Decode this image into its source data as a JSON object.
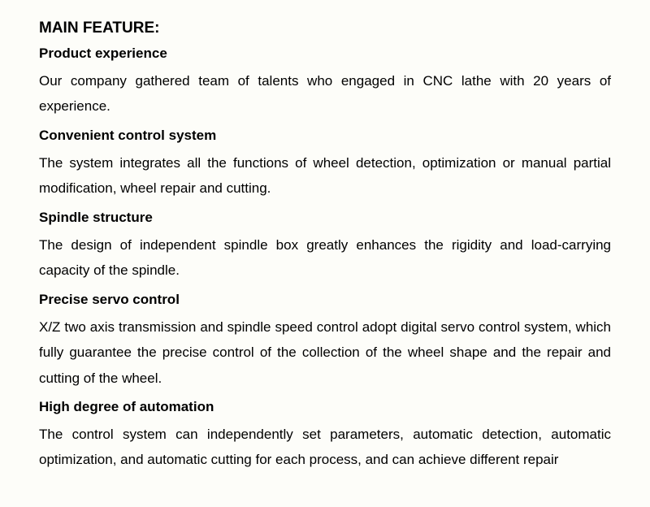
{
  "document": {
    "main_title": "MAIN FEATURE:",
    "title_fontsize": 19,
    "heading_fontsize": 17,
    "body_fontsize": 17,
    "text_color": "#000000",
    "background_color": "#fdfdf9",
    "line_height": 1.85,
    "text_align": "justify",
    "sections": [
      {
        "heading": "Product experience",
        "text": "Our company gathered team of talents who engaged in CNC lathe with 20 years of experience."
      },
      {
        "heading": "Convenient control system",
        "text": "The system integrates all the functions of wheel detection, optimization or manual partial modification, wheel repair and cutting."
      },
      {
        "heading": "Spindle structure",
        "text": "The design of independent spindle box greatly enhances the rigidity and load-carrying capacity of the spindle."
      },
      {
        "heading": "Precise servo control",
        "text": "X/Z two axis transmission and spindle speed control adopt digital servo control system, which fully guarantee the precise control of the collection of the wheel shape and the repair and cutting of the wheel."
      },
      {
        "heading": "High degree of automation",
        "text": "The control system can independently set parameters, automatic detection, automatic optimization, and automatic cutting for each process, and can achieve different repair"
      }
    ]
  }
}
